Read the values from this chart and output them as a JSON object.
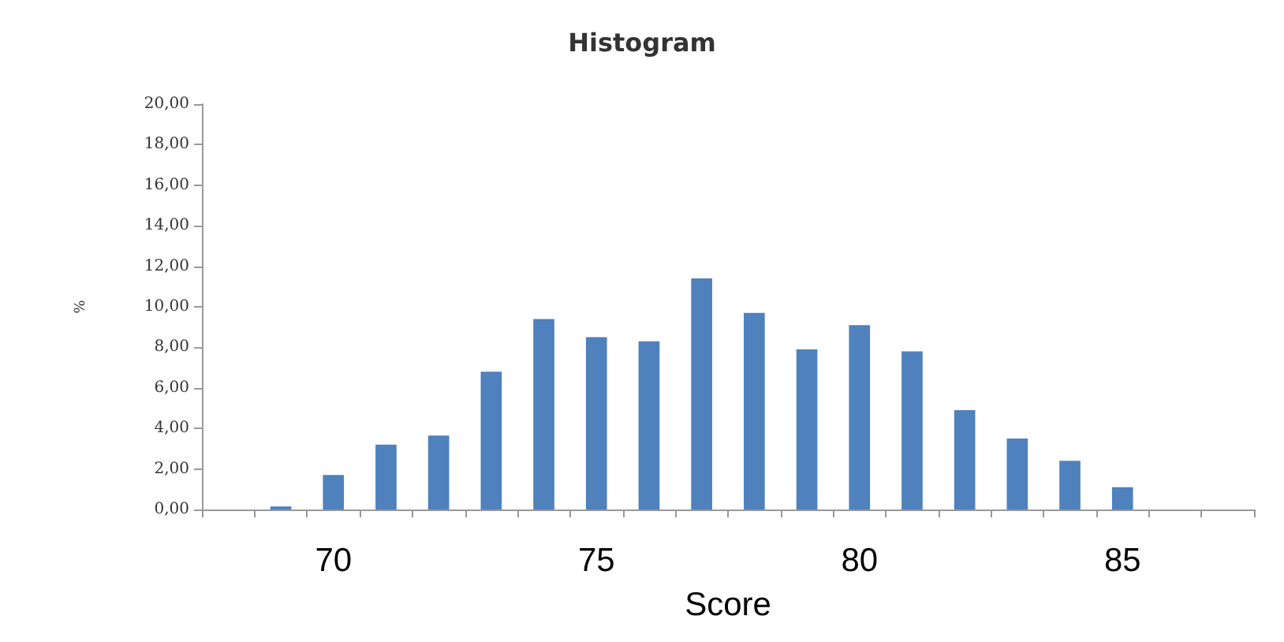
{
  "chart_data": {
    "type": "bar",
    "title": "Histogram",
    "xlabel": "Score",
    "ylabel": "%",
    "categories": [
      null,
      null,
      "70",
      null,
      null,
      null,
      null,
      "75",
      null,
      null,
      null,
      null,
      "80",
      null,
      null,
      null,
      null,
      "85",
      null,
      null
    ],
    "values": [
      null,
      0.15,
      1.7,
      3.2,
      3.65,
      6.8,
      9.4,
      8.5,
      8.3,
      11.4,
      9.7,
      7.9,
      9.1,
      7.8,
      4.9,
      3.5,
      2.4,
      1.1,
      null,
      null
    ],
    "color": "#4f81bd",
    "ylim": [
      0,
      20
    ],
    "yticks": [
      {
        "value": 0,
        "label": "0,00"
      },
      {
        "value": 2,
        "label": "2,00"
      },
      {
        "value": 4,
        "label": "4,00"
      },
      {
        "value": 6,
        "label": "6,00"
      },
      {
        "value": 8,
        "label": "8,00"
      },
      {
        "value": 10,
        "label": "10,00"
      },
      {
        "value": 12,
        "label": "12,00"
      },
      {
        "value": 14,
        "label": "14,00"
      },
      {
        "value": 16,
        "label": "16,00"
      },
      {
        "value": 18,
        "label": "18,00"
      },
      {
        "value": 20,
        "label": "20,00"
      }
    ],
    "grid": false
  }
}
